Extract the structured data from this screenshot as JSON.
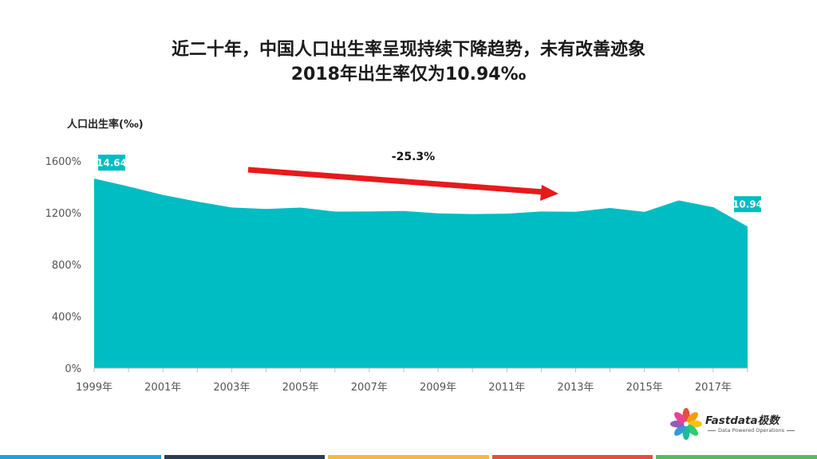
{
  "title_line1": "近二十年，中国人口出生率呈现持续下降趋势，未有改善迹象",
  "title_line2": "2018年出生率仅为10.94‰",
  "logo": {
    "name": "Fastdata极数",
    "tagline": "Data Powered Operations"
  },
  "colors": {
    "area": "#00bcc3",
    "arrow": "#e8191c",
    "footer": [
      "#1aa3dc",
      "#2c3e50",
      "#f4b942",
      "#e74c3c",
      "#5cb85c"
    ]
  },
  "chart_data": {
    "type": "area",
    "ylabel": "人口出生率(‰)",
    "ylim": [
      0,
      1600
    ],
    "yticks": [
      0,
      400,
      800,
      1200,
      1600
    ],
    "ytick_labels": [
      "0%",
      "400%",
      "800%",
      "1200%",
      "1600%"
    ],
    "x": [
      1999,
      2000,
      2001,
      2002,
      2003,
      2004,
      2005,
      2006,
      2007,
      2008,
      2009,
      2010,
      2011,
      2012,
      2013,
      2014,
      2015,
      2016,
      2017,
      2018
    ],
    "xtick_labels": [
      "1999年",
      "2001年",
      "2003年",
      "2005年",
      "2007年",
      "2009年",
      "2011年",
      "2013年",
      "2015年",
      "2017年"
    ],
    "xtick_years": [
      1999,
      2001,
      2003,
      2005,
      2007,
      2009,
      2011,
      2013,
      2015,
      2017
    ],
    "series": [
      {
        "values": [
          1464,
          1403,
          1338,
          1286,
          1241,
          1229,
          1240,
          1209,
          1210,
          1214,
          1195,
          1190,
          1193,
          1210,
          1208,
          1237,
          1207,
          1295,
          1243,
          1094
        ]
      }
    ],
    "annotations": {
      "first_label": "14.64",
      "last_label": "10.94",
      "change": "-25.3%"
    },
    "grid": false
  }
}
